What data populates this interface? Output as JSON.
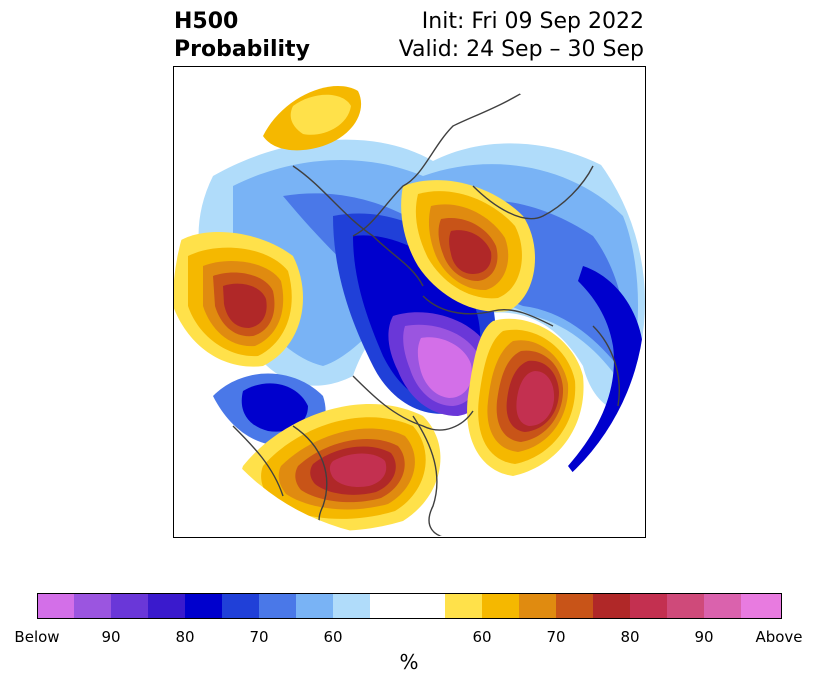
{
  "title": {
    "left_line1": "H500",
    "left_line2": "Probability",
    "right_line1": "Init: Fri 09 Sep 2022",
    "right_line2": "Valid: 24 Sep – 30 Sep"
  },
  "colorbar": {
    "colors": [
      "#d36fe8",
      "#9b55e0",
      "#6a37d8",
      "#3a1acd",
      "#0000cd",
      "#2040d8",
      "#4a78e8",
      "#79b3f5",
      "#b0dcfa",
      "#ffffff",
      "#ffe14a",
      "#f5b800",
      "#e08b10",
      "#c85418",
      "#b02828",
      "#c33050",
      "#cf4a7a",
      "#da62ad",
      "#e87be0"
    ],
    "tick_labels": [
      "Below",
      "90",
      "80",
      "70",
      "60",
      "60",
      "70",
      "80",
      "90",
      "Above"
    ],
    "unit_label": "%"
  }
}
